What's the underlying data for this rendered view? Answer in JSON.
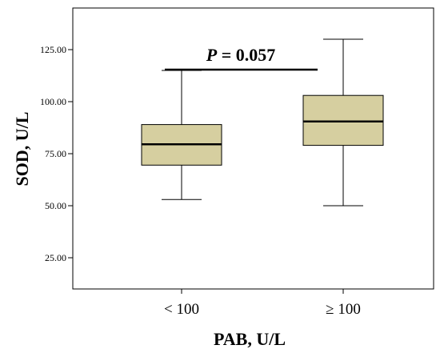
{
  "chart_data": {
    "type": "box",
    "xlabel": "PAB, U/L",
    "ylabel": "SOD, U/L",
    "ylim": [
      10,
      145
    ],
    "yticks": [
      25,
      50,
      75,
      100,
      125
    ],
    "ytick_labels": [
      "25.00",
      "50.00",
      "75.00",
      "100.00",
      "125.00"
    ],
    "categories": [
      "< 100",
      "≥ 100"
    ],
    "boxes": [
      {
        "category": "< 100",
        "min": 53,
        "q1": 69.5,
        "median": 79.5,
        "q3": 89,
        "max": 115
      },
      {
        "category": "≥ 100",
        "min": 50,
        "q1": 79,
        "median": 90.5,
        "q3": 103,
        "max": 130
      }
    ],
    "box_fill": "#d6cfa0",
    "annotation": {
      "p_symbol": "P",
      "p_rest": " = 0.057"
    },
    "grid": false
  }
}
